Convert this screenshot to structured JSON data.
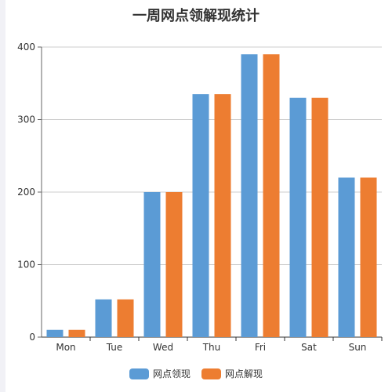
{
  "chart_data": {
    "type": "bar",
    "title": "一周网点领解现统计",
    "categories": [
      "Mon",
      "Tue",
      "Wed",
      "Thu",
      "Fri",
      "Sat",
      "Sun"
    ],
    "series": [
      {
        "name": "网点领现",
        "color": "#5b9bd5",
        "values": [
          10,
          52,
          200,
          335,
          390,
          330,
          220
        ]
      },
      {
        "name": "网点解现",
        "color": "#ed7d31",
        "values": [
          10,
          52,
          200,
          335,
          390,
          330,
          220
        ]
      }
    ],
    "ylim": [
      0,
      400
    ],
    "yticks": [
      0,
      100,
      200,
      300,
      400
    ],
    "grid": true,
    "legend_position": "bottom"
  }
}
